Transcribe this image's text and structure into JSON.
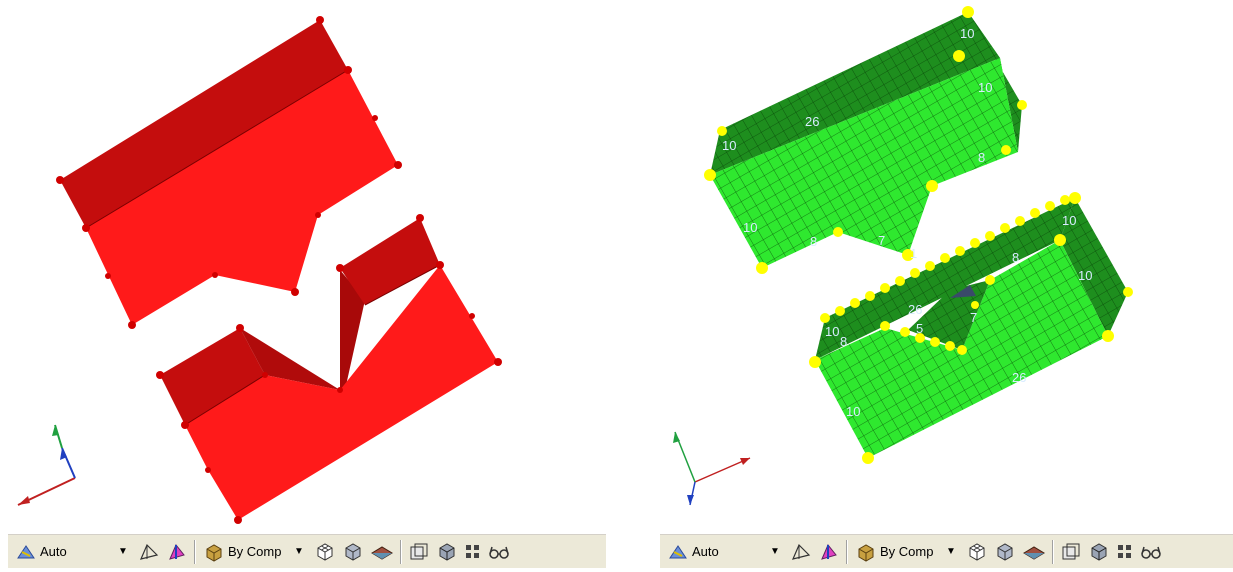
{
  "left_viewport": {
    "title": "",
    "toolbar": {
      "display_mode": "Auto",
      "color_mode": "By Comp"
    }
  },
  "right_viewport": {
    "title": "",
    "mesh_density_labels": [
      "10",
      "10",
      "10",
      "26",
      "8",
      "10",
      "8",
      "7",
      "1",
      "10",
      "8",
      "10",
      "26",
      "7",
      "5",
      "10",
      "8",
      "10",
      "26"
    ],
    "toolbar": {
      "display_mode": "Auto",
      "color_mode": "By Comp"
    }
  },
  "colors": {
    "solid_red": "#ff1a1a",
    "solid_red_dark": "#c40d0d",
    "mesh_green": "#2fe82f",
    "mesh_green_dark": "#1e8e1e",
    "node_yellow": "#ffff00",
    "toolbar_bg": "#ece9d8"
  },
  "icons": [
    "auto-icon",
    "dropdown-arrow-icon",
    "view-icon",
    "pink-shade-icon",
    "by-comp-icon",
    "wireframe-cube-icon",
    "shaded-cube-icon",
    "plane-icon",
    "box-icon",
    "solid-box-icon",
    "grid-icon",
    "glasses-icon"
  ]
}
